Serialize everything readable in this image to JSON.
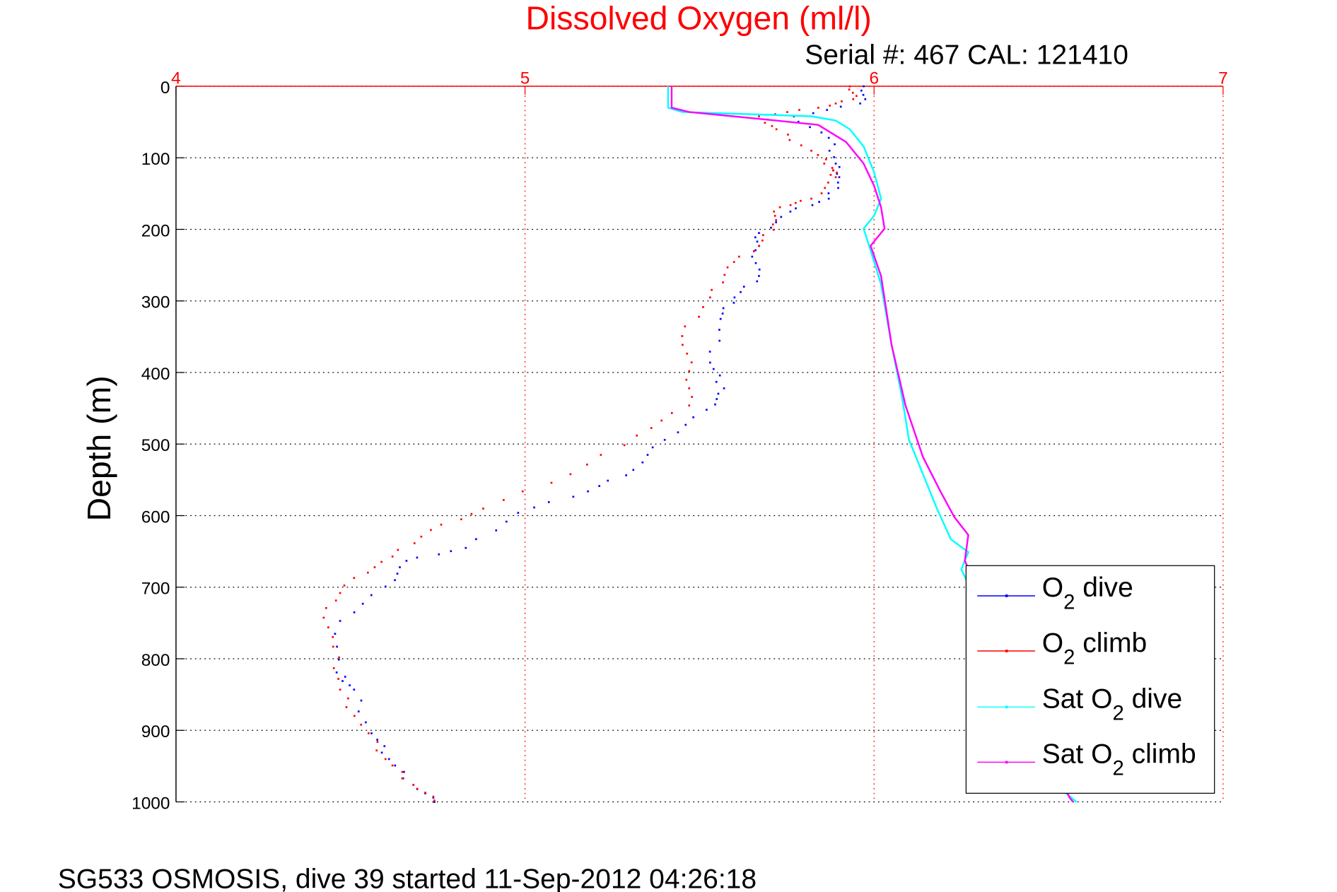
{
  "chart_data": {
    "type": "scatter",
    "title": "Dissolved Oxygen (ml/l)",
    "subtitle": "Serial #: 467  CAL: 121410",
    "xlabel": "",
    "ylabel": "Depth (m)",
    "footer": "SG533 OSMOSIS, dive 39 started 11-Sep-2012 04:26:18",
    "xlim": [
      4,
      7
    ],
    "ylim": [
      0,
      1000
    ],
    "y_reversed": true,
    "x_axis_position": "top",
    "xticks": [
      "4",
      "5",
      "6",
      "7"
    ],
    "yticks": [
      "0",
      "100",
      "200",
      "300",
      "400",
      "500",
      "600",
      "700",
      "800",
      "900",
      "1000"
    ],
    "grid": true,
    "legend_position": "bottom-right",
    "series": [
      {
        "name": "O2 dive",
        "legend_main": "O",
        "legend_sub": "2",
        "legend_suffix": " dive",
        "legend_prefix": "",
        "color": "#0000ff",
        "style": "dots",
        "points": [
          [
            5.97,
            0
          ],
          [
            5.96,
            24
          ],
          [
            5.77,
            42
          ],
          [
            5.87,
            72
          ],
          [
            5.89,
            108
          ],
          [
            5.9,
            127
          ],
          [
            5.87,
            157
          ],
          [
            5.76,
            175
          ],
          [
            5.67,
            205
          ],
          [
            5.66,
            229
          ],
          [
            5.67,
            265
          ],
          [
            5.6,
            295
          ],
          [
            5.56,
            325
          ],
          [
            5.53,
            386
          ],
          [
            5.57,
            422
          ],
          [
            5.52,
            452
          ],
          [
            5.4,
            494
          ],
          [
            5.31,
            536
          ],
          [
            5.18,
            566
          ],
          [
            4.98,
            596
          ],
          [
            4.83,
            645
          ],
          [
            4.66,
            663
          ],
          [
            4.6,
            699
          ],
          [
            4.47,
            747
          ],
          [
            4.46,
            819
          ],
          [
            4.51,
            843
          ],
          [
            4.56,
            904
          ],
          [
            4.61,
            940
          ],
          [
            4.68,
            976
          ],
          [
            4.74,
            1000
          ]
        ]
      },
      {
        "name": "O2 climb",
        "legend_main": "O",
        "legend_sub": "2",
        "legend_suffix": " climb",
        "legend_prefix": "",
        "color": "#ff0000",
        "style": "dots",
        "points": [
          [
            5.93,
            0
          ],
          [
            5.94,
            18
          ],
          [
            5.84,
            30
          ],
          [
            5.67,
            42
          ],
          [
            5.72,
            60
          ],
          [
            5.82,
            90
          ],
          [
            5.88,
            114
          ],
          [
            5.89,
            127
          ],
          [
            5.82,
            157
          ],
          [
            5.73,
            169
          ],
          [
            5.71,
            193
          ],
          [
            5.67,
            223
          ],
          [
            5.58,
            253
          ],
          [
            5.53,
            295
          ],
          [
            5.45,
            349
          ],
          [
            5.47,
            398
          ],
          [
            5.47,
            446
          ],
          [
            5.32,
            488
          ],
          [
            5.13,
            542
          ],
          [
            4.88,
            590
          ],
          [
            4.73,
            620
          ],
          [
            4.62,
            657
          ],
          [
            4.51,
            687
          ],
          [
            4.43,
            729
          ],
          [
            4.45,
            783
          ],
          [
            4.47,
            843
          ],
          [
            4.53,
            892
          ],
          [
            4.6,
            940
          ],
          [
            4.68,
            976
          ],
          [
            4.74,
            998
          ]
        ]
      },
      {
        "name": "Sat O2 dive",
        "legend_main": "O",
        "legend_sub": "2",
        "legend_suffix": " dive",
        "legend_prefix": "Sat ",
        "color": "#00ffff",
        "style": "line",
        "points": [
          [
            5.41,
            0
          ],
          [
            5.41,
            30
          ],
          [
            5.45,
            36
          ],
          [
            5.82,
            42
          ],
          [
            5.89,
            48
          ],
          [
            5.93,
            60
          ],
          [
            5.97,
            84
          ],
          [
            6.0,
            120
          ],
          [
            6.02,
            157
          ],
          [
            6.0,
            181
          ],
          [
            5.97,
            199
          ],
          [
            5.99,
            229
          ],
          [
            6.02,
            277
          ],
          [
            6.05,
            361
          ],
          [
            6.08,
            434
          ],
          [
            6.1,
            494
          ],
          [
            6.14,
            542
          ],
          [
            6.18,
            590
          ],
          [
            6.22,
            633
          ],
          [
            6.27,
            651
          ],
          [
            6.25,
            675
          ],
          [
            6.4,
            830
          ],
          [
            6.55,
            988
          ],
          [
            6.58,
            1000
          ]
        ]
      },
      {
        "name": "Sat O2 climb",
        "legend_main": "O",
        "legend_sub": "2",
        "legend_suffix": " climb",
        "legend_prefix": "Sat ",
        "color": "#ff00ff",
        "style": "line",
        "points": [
          [
            5.42,
            0
          ],
          [
            5.42,
            30
          ],
          [
            5.47,
            36
          ],
          [
            5.72,
            48
          ],
          [
            5.84,
            54
          ],
          [
            5.92,
            78
          ],
          [
            5.97,
            108
          ],
          [
            6.0,
            139
          ],
          [
            6.02,
            169
          ],
          [
            6.03,
            199
          ],
          [
            5.99,
            223
          ],
          [
            6.02,
            265
          ],
          [
            6.05,
            361
          ],
          [
            6.09,
            446
          ],
          [
            6.14,
            518
          ],
          [
            6.19,
            566
          ],
          [
            6.23,
            602
          ],
          [
            6.27,
            627
          ],
          [
            6.26,
            663
          ],
          [
            6.4,
            820
          ],
          [
            6.56,
            994
          ],
          [
            6.57,
            1000
          ]
        ]
      }
    ]
  }
}
